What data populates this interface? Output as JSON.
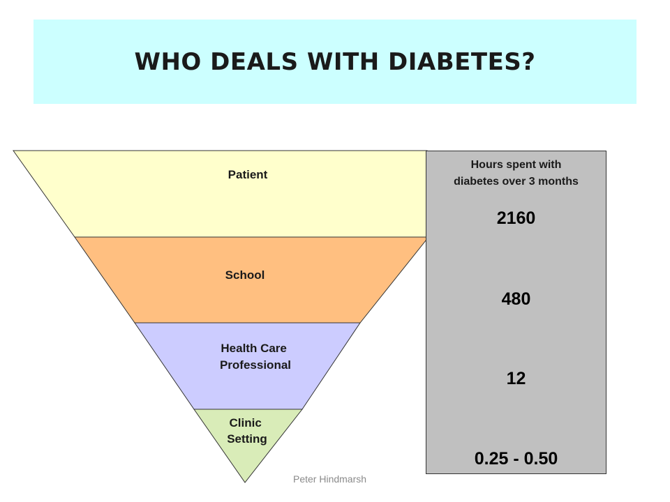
{
  "title": "WHO DEALS WITH DIABETES?",
  "tiers": [
    {
      "label_lines": [
        "Patient"
      ],
      "color": "#ffffcc"
    },
    {
      "label_lines": [
        "School"
      ],
      "color": "#ffbf80"
    },
    {
      "label_lines": [
        "Health Care",
        "Professional"
      ],
      "color": "#ccccff"
    },
    {
      "label_lines": [
        "Clinic",
        "Setting"
      ],
      "color": "#d9ecb8"
    }
  ],
  "hours": {
    "header_lines": [
      "Hours spent with",
      "diabetes over 3 months"
    ],
    "values": [
      "2160",
      "480",
      "12",
      "0.25 - 0.50"
    ]
  },
  "credit": "Peter Hindmarsh",
  "colors": {
    "title_background": "#ccffff",
    "panel_background": "#c0c0c0",
    "outline": "#333333"
  }
}
